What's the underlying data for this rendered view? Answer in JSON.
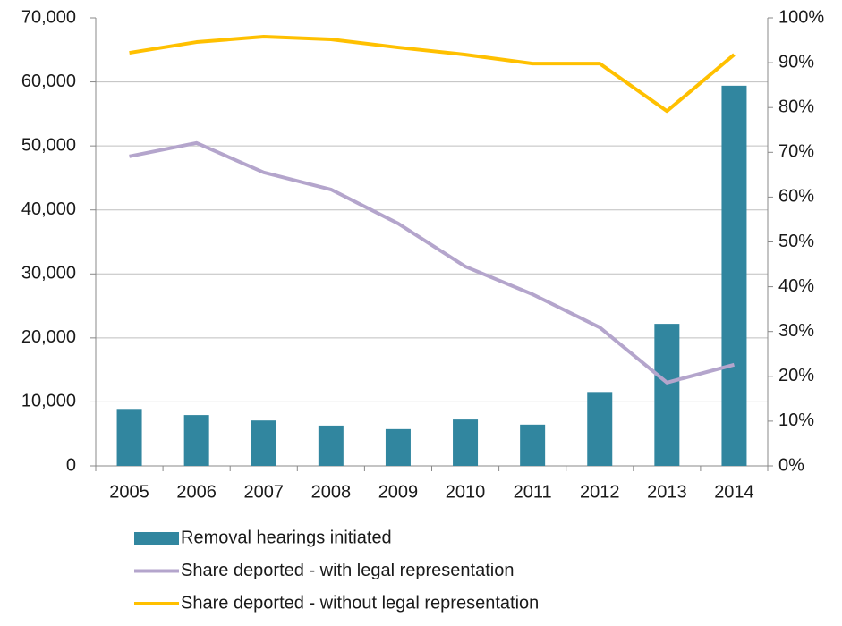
{
  "chart_data": {
    "type": "bar",
    "categories": [
      "2005",
      "2006",
      "2007",
      "2008",
      "2009",
      "2010",
      "2011",
      "2012",
      "2013",
      "2014"
    ],
    "series": [
      {
        "name": "Removal hearings initiated",
        "type": "bar",
        "axis": "y",
        "color": "#31869f",
        "values": [
          8900,
          7950,
          7100,
          6300,
          5750,
          7250,
          6450,
          11550,
          22200,
          59400
        ]
      },
      {
        "name": "Share deported - with legal representation",
        "type": "line",
        "axis": "y2",
        "color": "#b4a5cc",
        "values": [
          69.1,
          72.1,
          65.5,
          61.7,
          54.1,
          44.5,
          38.3,
          30.9,
          18.6,
          22.6
        ]
      },
      {
        "name": "Share deported - without legal representation",
        "type": "line",
        "axis": "y2",
        "color": "#ffc000",
        "values": [
          92.2,
          94.6,
          95.8,
          95.2,
          93.4,
          91.8,
          89.8,
          89.8,
          79.2,
          91.8
        ]
      }
    ],
    "ylim": [
      0,
      70000
    ],
    "yticks": [
      0,
      {
        "value": 10000,
        "label": "10,000"
      },
      {
        "value": 20000,
        "label": "20,000"
      },
      {
        "value": 30000,
        "label": "30,000"
      },
      {
        "value": 40000,
        "label": "40,000"
      },
      {
        "value": 50000,
        "label": "50,000"
      },
      {
        "value": 60000,
        "label": "60,000"
      },
      {
        "value": 70000,
        "label": "70,000"
      }
    ],
    "y2lim": [
      0,
      100
    ],
    "y2ticks": [
      {
        "value": 0,
        "label": "0%"
      },
      {
        "value": 10,
        "label": "10%"
      },
      {
        "value": 20,
        "label": "20%"
      },
      {
        "value": 30,
        "label": "30%"
      },
      {
        "value": 40,
        "label": "40%"
      },
      {
        "value": 50,
        "label": "50%"
      },
      {
        "value": 60,
        "label": "60%"
      },
      {
        "value": 70,
        "label": "70%"
      },
      {
        "value": 80,
        "label": "80%"
      },
      {
        "value": 90,
        "label": "90%"
      },
      {
        "value": 100,
        "label": "100%"
      }
    ],
    "grid": true,
    "legend": "bottom"
  }
}
